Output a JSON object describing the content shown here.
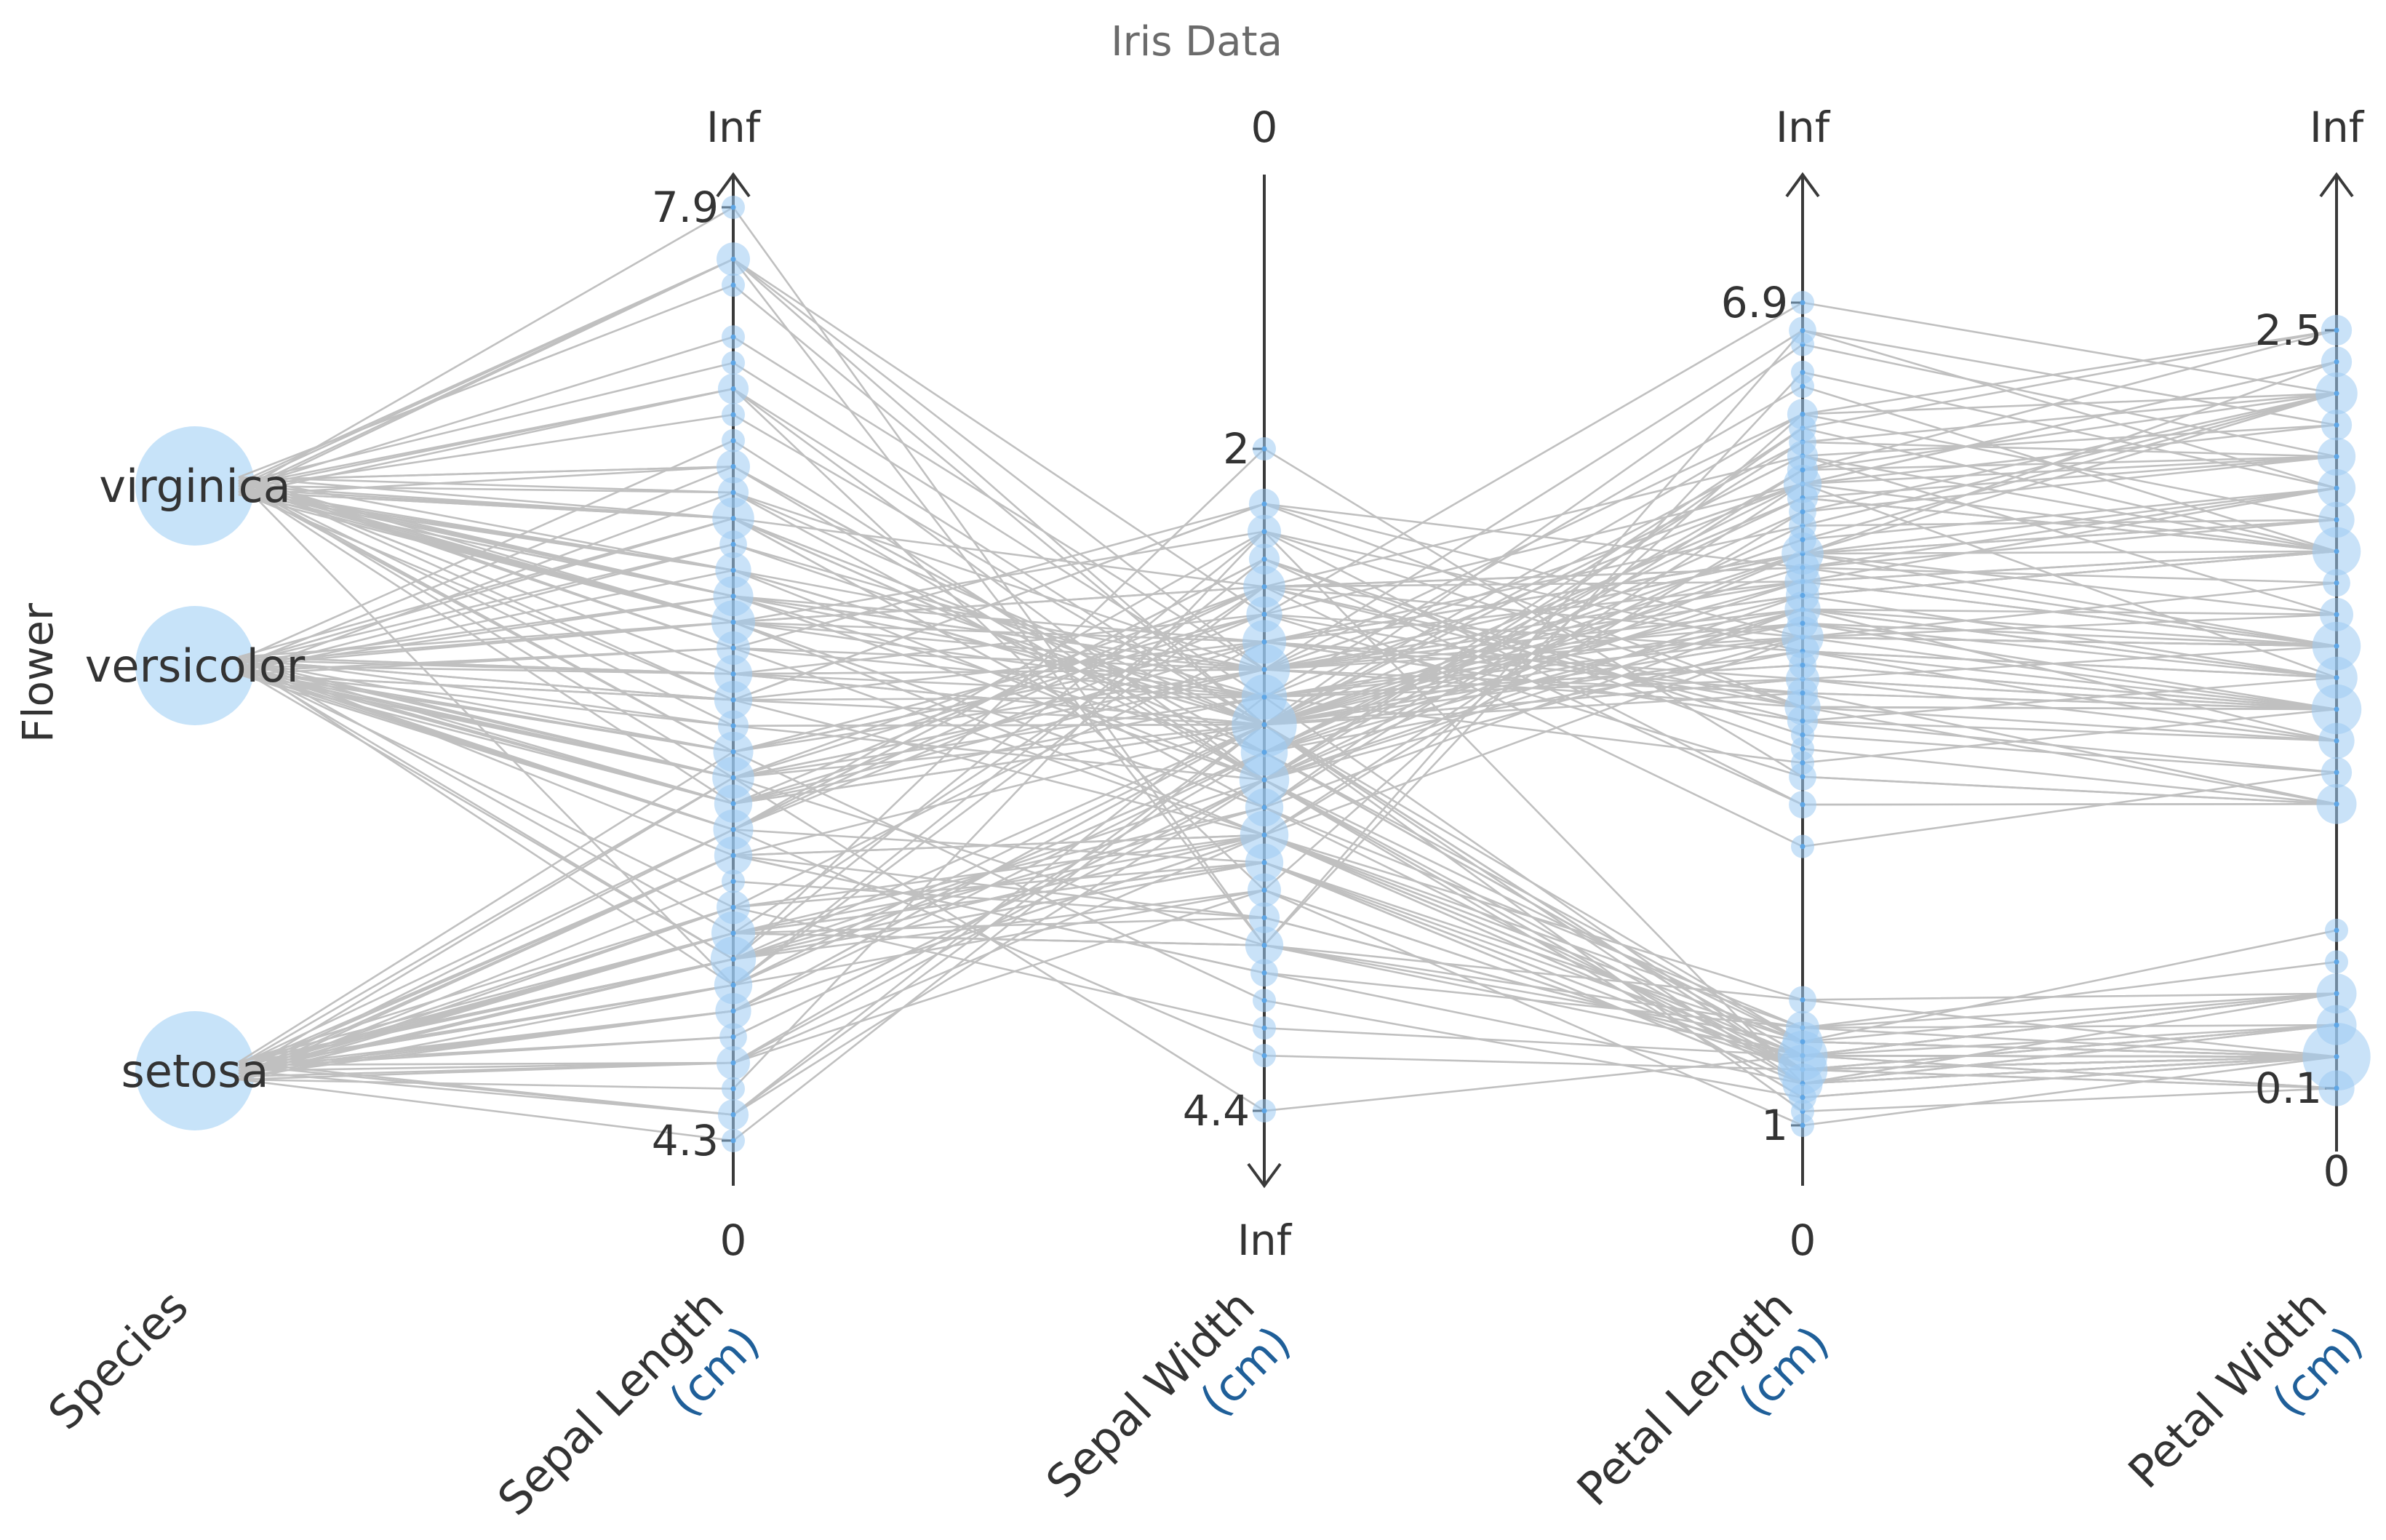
{
  "chart_data": {
    "type": "parallel-coordinates",
    "title": "Iris Data",
    "ylabel": "Flower",
    "species_axis": {
      "name": "Species",
      "categories": [
        "virginica",
        "versicolor",
        "setosa"
      ]
    },
    "axes": [
      {
        "name": "Sepal Length",
        "unit": "(cm)",
        "min": 4.3,
        "max": 7.9,
        "top_label": "Inf",
        "bottom_label": "0",
        "direction": "up",
        "ticks": [
          "7.9",
          "4.3"
        ]
      },
      {
        "name": "Sepal Width",
        "unit": "(cm)",
        "min": 2,
        "max": 4.4,
        "top_label": "0",
        "bottom_label": "Inf",
        "direction": "down",
        "ticks": [
          "2",
          "4.4"
        ]
      },
      {
        "name": "Petal Length",
        "unit": "(cm)",
        "min": 1,
        "max": 6.9,
        "top_label": "Inf",
        "bottom_label": "0",
        "direction": "up",
        "ticks": [
          "6.9",
          "1"
        ]
      },
      {
        "name": "Petal Width",
        "unit": "(cm)",
        "min": 0.1,
        "max": 2.5,
        "top_label": "Inf",
        "bottom_label": "0",
        "direction": "up",
        "ticks": [
          "2.5",
          "0.1"
        ]
      }
    ],
    "records": [
      [
        "setosa",
        5.1,
        3.5,
        1.4,
        0.2
      ],
      [
        "setosa",
        4.9,
        3.0,
        1.4,
        0.2
      ],
      [
        "setosa",
        4.7,
        3.2,
        1.3,
        0.2
      ],
      [
        "setosa",
        4.6,
        3.1,
        1.5,
        0.2
      ],
      [
        "setosa",
        5.0,
        3.6,
        1.4,
        0.2
      ],
      [
        "setosa",
        5.4,
        3.9,
        1.7,
        0.4
      ],
      [
        "setosa",
        4.6,
        3.4,
        1.4,
        0.3
      ],
      [
        "setosa",
        5.0,
        3.4,
        1.5,
        0.2
      ],
      [
        "setosa",
        4.4,
        2.9,
        1.4,
        0.2
      ],
      [
        "setosa",
        4.9,
        3.1,
        1.5,
        0.1
      ],
      [
        "setosa",
        5.4,
        3.7,
        1.5,
        0.2
      ],
      [
        "setosa",
        4.8,
        3.4,
        1.6,
        0.2
      ],
      [
        "setosa",
        4.8,
        3.0,
        1.4,
        0.1
      ],
      [
        "setosa",
        4.3,
        3.0,
        1.1,
        0.1
      ],
      [
        "setosa",
        5.8,
        4.0,
        1.2,
        0.2
      ],
      [
        "setosa",
        5.7,
        4.4,
        1.5,
        0.4
      ],
      [
        "setosa",
        5.4,
        3.9,
        1.3,
        0.4
      ],
      [
        "setosa",
        5.1,
        3.5,
        1.4,
        0.3
      ],
      [
        "setosa",
        5.7,
        3.8,
        1.7,
        0.3
      ],
      [
        "setosa",
        5.1,
        3.8,
        1.5,
        0.3
      ],
      [
        "setosa",
        5.4,
        3.4,
        1.7,
        0.2
      ],
      [
        "setosa",
        5.1,
        3.7,
        1.5,
        0.4
      ],
      [
        "setosa",
        4.6,
        3.6,
        1.0,
        0.2
      ],
      [
        "setosa",
        5.1,
        3.3,
        1.7,
        0.5
      ],
      [
        "setosa",
        4.8,
        3.4,
        1.9,
        0.2
      ],
      [
        "setosa",
        5.0,
        3.0,
        1.6,
        0.2
      ],
      [
        "setosa",
        5.0,
        3.4,
        1.6,
        0.4
      ],
      [
        "setosa",
        5.2,
        3.5,
        1.5,
        0.2
      ],
      [
        "setosa",
        5.2,
        3.4,
        1.4,
        0.2
      ],
      [
        "setosa",
        4.7,
        3.2,
        1.6,
        0.2
      ],
      [
        "setosa",
        4.8,
        3.1,
        1.6,
        0.2
      ],
      [
        "setosa",
        5.4,
        3.4,
        1.5,
        0.4
      ],
      [
        "setosa",
        5.2,
        4.1,
        1.5,
        0.1
      ],
      [
        "setosa",
        5.5,
        4.2,
        1.4,
        0.2
      ],
      [
        "setosa",
        4.9,
        3.1,
        1.5,
        0.2
      ],
      [
        "setosa",
        5.0,
        3.2,
        1.2,
        0.2
      ],
      [
        "setosa",
        5.5,
        3.5,
        1.3,
        0.2
      ],
      [
        "setosa",
        4.9,
        3.6,
        1.4,
        0.1
      ],
      [
        "setosa",
        4.4,
        3.0,
        1.3,
        0.2
      ],
      [
        "setosa",
        5.1,
        3.4,
        1.5,
        0.2
      ],
      [
        "setosa",
        5.0,
        3.5,
        1.3,
        0.3
      ],
      [
        "setosa",
        4.5,
        2.3,
        1.3,
        0.3
      ],
      [
        "setosa",
        4.4,
        3.2,
        1.3,
        0.2
      ],
      [
        "setosa",
        5.0,
        3.5,
        1.6,
        0.6
      ],
      [
        "setosa",
        5.1,
        3.8,
        1.9,
        0.4
      ],
      [
        "setosa",
        4.8,
        3.0,
        1.4,
        0.3
      ],
      [
        "setosa",
        5.1,
        3.8,
        1.6,
        0.2
      ],
      [
        "setosa",
        4.6,
        3.2,
        1.4,
        0.2
      ],
      [
        "setosa",
        5.3,
        3.7,
        1.5,
        0.2
      ],
      [
        "setosa",
        5.0,
        3.3,
        1.4,
        0.2
      ],
      [
        "versicolor",
        7.0,
        3.2,
        4.7,
        1.4
      ],
      [
        "versicolor",
        6.4,
        3.2,
        4.5,
        1.5
      ],
      [
        "versicolor",
        6.9,
        3.1,
        4.9,
        1.5
      ],
      [
        "versicolor",
        5.5,
        2.3,
        4.0,
        1.3
      ],
      [
        "versicolor",
        6.5,
        2.8,
        4.6,
        1.5
      ],
      [
        "versicolor",
        5.7,
        2.8,
        4.5,
        1.3
      ],
      [
        "versicolor",
        6.3,
        3.3,
        4.7,
        1.6
      ],
      [
        "versicolor",
        4.9,
        2.4,
        3.3,
        1.0
      ],
      [
        "versicolor",
        6.6,
        2.9,
        4.6,
        1.3
      ],
      [
        "versicolor",
        5.2,
        2.7,
        3.9,
        1.4
      ],
      [
        "versicolor",
        5.0,
        2.0,
        3.5,
        1.0
      ],
      [
        "versicolor",
        5.9,
        3.0,
        4.2,
        1.5
      ],
      [
        "versicolor",
        6.0,
        2.2,
        4.0,
        1.0
      ],
      [
        "versicolor",
        6.1,
        2.9,
        4.7,
        1.4
      ],
      [
        "versicolor",
        5.6,
        2.9,
        3.6,
        1.3
      ],
      [
        "versicolor",
        6.7,
        3.1,
        4.4,
        1.4
      ],
      [
        "versicolor",
        5.6,
        3.0,
        4.5,
        1.5
      ],
      [
        "versicolor",
        5.8,
        2.7,
        4.1,
        1.0
      ],
      [
        "versicolor",
        6.2,
        2.2,
        4.5,
        1.5
      ],
      [
        "versicolor",
        5.6,
        2.5,
        3.9,
        1.1
      ],
      [
        "versicolor",
        5.9,
        3.2,
        4.8,
        1.8
      ],
      [
        "versicolor",
        6.1,
        2.8,
        4.0,
        1.3
      ],
      [
        "versicolor",
        6.3,
        2.5,
        4.9,
        1.5
      ],
      [
        "versicolor",
        6.1,
        2.8,
        4.7,
        1.2
      ],
      [
        "versicolor",
        6.4,
        2.9,
        4.3,
        1.3
      ],
      [
        "versicolor",
        6.6,
        3.0,
        4.4,
        1.4
      ],
      [
        "versicolor",
        6.8,
        2.8,
        4.8,
        1.4
      ],
      [
        "versicolor",
        6.7,
        3.0,
        5.0,
        1.7
      ],
      [
        "versicolor",
        6.0,
        2.9,
        4.5,
        1.5
      ],
      [
        "versicolor",
        5.7,
        2.6,
        3.5,
        1.0
      ],
      [
        "versicolor",
        5.5,
        2.4,
        3.8,
        1.1
      ],
      [
        "versicolor",
        5.5,
        2.4,
        3.7,
        1.0
      ],
      [
        "versicolor",
        5.8,
        2.7,
        3.9,
        1.2
      ],
      [
        "versicolor",
        6.0,
        2.7,
        5.1,
        1.6
      ],
      [
        "versicolor",
        5.4,
        3.0,
        4.5,
        1.5
      ],
      [
        "versicolor",
        6.0,
        3.4,
        4.5,
        1.6
      ],
      [
        "versicolor",
        6.7,
        3.1,
        4.7,
        1.5
      ],
      [
        "versicolor",
        6.3,
        2.3,
        4.4,
        1.3
      ],
      [
        "versicolor",
        5.6,
        3.0,
        4.1,
        1.3
      ],
      [
        "versicolor",
        5.5,
        2.5,
        4.0,
        1.3
      ],
      [
        "versicolor",
        5.5,
        2.6,
        4.4,
        1.2
      ],
      [
        "versicolor",
        6.1,
        3.0,
        4.6,
        1.4
      ],
      [
        "versicolor",
        5.8,
        2.6,
        4.0,
        1.2
      ],
      [
        "versicolor",
        5.0,
        2.3,
        3.3,
        1.0
      ],
      [
        "versicolor",
        5.6,
        2.7,
        4.2,
        1.3
      ],
      [
        "versicolor",
        5.7,
        3.0,
        4.2,
        1.2
      ],
      [
        "versicolor",
        5.7,
        2.9,
        4.2,
        1.3
      ],
      [
        "versicolor",
        6.2,
        2.9,
        4.3,
        1.3
      ],
      [
        "versicolor",
        5.1,
        2.5,
        3.0,
        1.1
      ],
      [
        "versicolor",
        5.7,
        2.8,
        4.1,
        1.3
      ],
      [
        "virginica",
        6.3,
        3.3,
        6.0,
        2.5
      ],
      [
        "virginica",
        5.8,
        2.7,
        5.1,
        1.9
      ],
      [
        "virginica",
        7.1,
        3.0,
        5.9,
        2.1
      ],
      [
        "virginica",
        6.3,
        2.9,
        5.6,
        1.8
      ],
      [
        "virginica",
        6.5,
        3.0,
        5.8,
        2.2
      ],
      [
        "virginica",
        7.6,
        3.0,
        6.6,
        2.1
      ],
      [
        "virginica",
        4.9,
        2.5,
        4.5,
        1.7
      ],
      [
        "virginica",
        7.3,
        2.9,
        6.3,
        1.8
      ],
      [
        "virginica",
        6.7,
        2.5,
        5.8,
        1.8
      ],
      [
        "virginica",
        7.2,
        3.6,
        6.1,
        2.5
      ],
      [
        "virginica",
        6.5,
        3.2,
        5.1,
        2.0
      ],
      [
        "virginica",
        6.4,
        2.7,
        5.3,
        1.9
      ],
      [
        "virginica",
        6.8,
        3.0,
        5.5,
        2.1
      ],
      [
        "virginica",
        5.7,
        2.5,
        5.0,
        2.0
      ],
      [
        "virginica",
        5.8,
        2.8,
        5.1,
        2.4
      ],
      [
        "virginica",
        6.4,
        3.2,
        5.3,
        2.3
      ],
      [
        "virginica",
        6.5,
        3.0,
        5.5,
        1.8
      ],
      [
        "virginica",
        7.7,
        3.8,
        6.7,
        2.2
      ],
      [
        "virginica",
        7.7,
        2.6,
        6.9,
        2.3
      ],
      [
        "virginica",
        6.0,
        2.2,
        5.0,
        1.5
      ],
      [
        "virginica",
        6.9,
        3.2,
        5.7,
        2.3
      ],
      [
        "virginica",
        5.6,
        2.8,
        4.9,
        2.0
      ],
      [
        "virginica",
        7.7,
        2.8,
        6.7,
        2.0
      ],
      [
        "virginica",
        6.3,
        2.7,
        4.9,
        1.8
      ],
      [
        "virginica",
        6.7,
        3.3,
        5.7,
        2.1
      ],
      [
        "virginica",
        7.2,
        3.2,
        6.0,
        1.8
      ],
      [
        "virginica",
        6.2,
        2.8,
        4.8,
        1.8
      ],
      [
        "virginica",
        6.1,
        3.0,
        4.9,
        1.8
      ],
      [
        "virginica",
        6.4,
        2.8,
        5.6,
        2.1
      ],
      [
        "virginica",
        7.2,
        3.0,
        5.8,
        1.6
      ],
      [
        "virginica",
        7.4,
        2.8,
        6.1,
        1.9
      ],
      [
        "virginica",
        7.9,
        3.8,
        6.4,
        2.0
      ],
      [
        "virginica",
        6.4,
        2.8,
        5.6,
        2.2
      ],
      [
        "virginica",
        6.3,
        2.8,
        5.1,
        1.5
      ],
      [
        "virginica",
        6.1,
        2.6,
        5.6,
        1.4
      ],
      [
        "virginica",
        7.7,
        3.0,
        6.1,
        2.3
      ],
      [
        "virginica",
        6.3,
        3.4,
        5.6,
        2.4
      ],
      [
        "virginica",
        6.4,
        3.1,
        5.5,
        1.8
      ],
      [
        "virginica",
        6.0,
        3.0,
        4.8,
        1.8
      ],
      [
        "virginica",
        6.9,
        3.1,
        5.4,
        2.1
      ],
      [
        "virginica",
        6.7,
        3.1,
        5.6,
        2.4
      ],
      [
        "virginica",
        6.9,
        3.1,
        5.1,
        2.3
      ],
      [
        "virginica",
        5.8,
        2.7,
        5.1,
        1.9
      ],
      [
        "virginica",
        6.8,
        3.2,
        5.9,
        2.3
      ],
      [
        "virginica",
        6.7,
        3.3,
        5.7,
        2.5
      ],
      [
        "virginica",
        6.7,
        3.0,
        5.2,
        2.3
      ],
      [
        "virginica",
        6.3,
        2.5,
        5.0,
        1.9
      ],
      [
        "virginica",
        6.5,
        3.0,
        5.2,
        2.0
      ],
      [
        "virginica",
        6.2,
        3.4,
        5.4,
        2.3
      ],
      [
        "virginica",
        5.9,
        3.0,
        5.1,
        1.8
      ]
    ]
  }
}
